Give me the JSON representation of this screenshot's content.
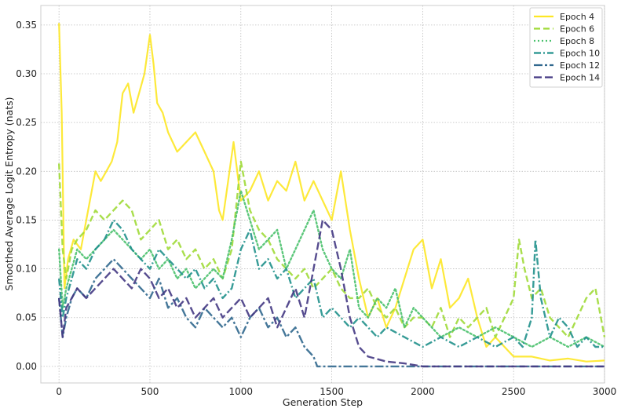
{
  "chart_data": {
    "type": "line",
    "title": "",
    "xlabel": "Generation Step",
    "ylabel": "Smoothed Average Logit Entropy (nats)",
    "xlim": [
      -100,
      3000
    ],
    "ylim": [
      -0.017,
      0.37
    ],
    "x_ticks": [
      0,
      500,
      1000,
      1500,
      2000,
      2500,
      3000
    ],
    "y_ticks": [
      0.0,
      0.05,
      0.1,
      0.15,
      0.2,
      0.25,
      0.3,
      0.35
    ],
    "x_tick_labels": [
      "0",
      "500",
      "1000",
      "1500",
      "2000",
      "2500",
      "3000"
    ],
    "y_tick_labels": [
      "0.00",
      "0.05",
      "0.10",
      "0.15",
      "0.20",
      "0.25",
      "0.30",
      "0.35"
    ],
    "grid": true,
    "legend_position": "top-right",
    "series": [
      {
        "name": "Epoch 4",
        "color": "#fde725",
        "dash": "solid",
        "x": [
          0,
          15,
          30,
          50,
          80,
          120,
          150,
          180,
          200,
          230,
          260,
          290,
          320,
          350,
          380,
          410,
          440,
          470,
          500,
          520,
          540,
          570,
          600,
          650,
          700,
          750,
          800,
          850,
          880,
          900,
          930,
          960,
          1000,
          1050,
          1100,
          1150,
          1200,
          1250,
          1300,
          1350,
          1400,
          1450,
          1500,
          1550,
          1600,
          1650,
          1700,
          1750,
          1800,
          1850,
          1900,
          1950,
          2000,
          2050,
          2100,
          2150,
          2200,
          2250,
          2300,
          2350,
          2400,
          2450,
          2500,
          2600,
          2700,
          2800,
          2900,
          3000
        ],
        "y": [
          0.352,
          0.26,
          0.08,
          0.11,
          0.13,
          0.12,
          0.15,
          0.18,
          0.2,
          0.19,
          0.2,
          0.21,
          0.23,
          0.28,
          0.29,
          0.26,
          0.28,
          0.3,
          0.34,
          0.31,
          0.27,
          0.26,
          0.24,
          0.22,
          0.23,
          0.24,
          0.22,
          0.2,
          0.16,
          0.15,
          0.19,
          0.23,
          0.17,
          0.18,
          0.2,
          0.17,
          0.19,
          0.18,
          0.21,
          0.17,
          0.19,
          0.17,
          0.15,
          0.2,
          0.14,
          0.09,
          0.05,
          0.07,
          0.04,
          0.06,
          0.09,
          0.12,
          0.13,
          0.08,
          0.11,
          0.06,
          0.07,
          0.09,
          0.05,
          0.02,
          0.03,
          0.02,
          0.01,
          0.01,
          0.006,
          0.008,
          0.005,
          0.006
        ]
      },
      {
        "name": "Epoch 6",
        "color": "#a0da39",
        "dash": "long-dash",
        "x": [
          0,
          20,
          40,
          70,
          100,
          150,
          200,
          250,
          300,
          350,
          400,
          450,
          500,
          550,
          600,
          650,
          700,
          750,
          800,
          850,
          900,
          950,
          1000,
          1050,
          1100,
          1150,
          1200,
          1250,
          1300,
          1350,
          1400,
          1450,
          1500,
          1550,
          1600,
          1650,
          1700,
          1750,
          1800,
          1850,
          1900,
          1950,
          2000,
          2050,
          2100,
          2150,
          2200,
          2250,
          2300,
          2350,
          2400,
          2450,
          2500,
          2530,
          2560,
          2600,
          2650,
          2700,
          2750,
          2800,
          2850,
          2900,
          2950,
          3000
        ],
        "y": [
          0.208,
          0.12,
          0.09,
          0.12,
          0.13,
          0.14,
          0.16,
          0.15,
          0.16,
          0.17,
          0.16,
          0.13,
          0.14,
          0.15,
          0.12,
          0.13,
          0.11,
          0.12,
          0.1,
          0.11,
          0.09,
          0.12,
          0.21,
          0.16,
          0.14,
          0.13,
          0.11,
          0.1,
          0.09,
          0.1,
          0.08,
          0.09,
          0.1,
          0.08,
          0.07,
          0.07,
          0.08,
          0.06,
          0.05,
          0.06,
          0.04,
          0.05,
          0.05,
          0.04,
          0.06,
          0.03,
          0.05,
          0.04,
          0.05,
          0.06,
          0.03,
          0.05,
          0.07,
          0.13,
          0.1,
          0.07,
          0.08,
          0.05,
          0.04,
          0.03,
          0.05,
          0.07,
          0.08,
          0.03
        ]
      },
      {
        "name": "Epoch 8",
        "color": "#4ac16d",
        "dash": "dotted",
        "x": [
          0,
          20,
          40,
          70,
          100,
          150,
          200,
          250,
          300,
          350,
          400,
          450,
          500,
          550,
          600,
          650,
          700,
          750,
          800,
          850,
          900,
          950,
          1000,
          1050,
          1100,
          1150,
          1200,
          1250,
          1300,
          1350,
          1400,
          1450,
          1500,
          1550,
          1600,
          1650,
          1700,
          1750,
          1800,
          1850,
          1900,
          1950,
          2000,
          2050,
          2100,
          2200,
          2300,
          2400,
          2500,
          2600,
          2700,
          2800,
          2900,
          3000
        ],
        "y": [
          0.12,
          0.06,
          0.08,
          0.1,
          0.12,
          0.11,
          0.12,
          0.13,
          0.14,
          0.13,
          0.12,
          0.11,
          0.12,
          0.1,
          0.11,
          0.09,
          0.1,
          0.08,
          0.09,
          0.1,
          0.09,
          0.13,
          0.18,
          0.15,
          0.12,
          0.13,
          0.14,
          0.1,
          0.12,
          0.14,
          0.16,
          0.12,
          0.1,
          0.09,
          0.12,
          0.06,
          0.05,
          0.07,
          0.06,
          0.08,
          0.04,
          0.06,
          0.05,
          0.04,
          0.03,
          0.04,
          0.03,
          0.04,
          0.03,
          0.02,
          0.03,
          0.02,
          0.03,
          0.02
        ]
      },
      {
        "name": "Epoch 10",
        "color": "#21918c",
        "dash": "dash-dot",
        "x": [
          0,
          20,
          40,
          70,
          100,
          150,
          200,
          250,
          300,
          350,
          400,
          450,
          500,
          550,
          600,
          650,
          700,
          750,
          800,
          850,
          900,
          950,
          1000,
          1050,
          1100,
          1150,
          1200,
          1250,
          1300,
          1350,
          1400,
          1450,
          1500,
          1550,
          1600,
          1650,
          1700,
          1750,
          1800,
          1900,
          2000,
          2100,
          2200,
          2300,
          2400,
          2500,
          2550,
          2600,
          2620,
          2650,
          2700,
          2750,
          2800,
          2850,
          2900,
          2950,
          3000
        ],
        "y": [
          0.09,
          0.05,
          0.07,
          0.09,
          0.11,
          0.1,
          0.12,
          0.13,
          0.15,
          0.14,
          0.12,
          0.11,
          0.1,
          0.12,
          0.11,
          0.1,
          0.09,
          0.1,
          0.08,
          0.09,
          0.07,
          0.08,
          0.12,
          0.14,
          0.1,
          0.11,
          0.09,
          0.1,
          0.07,
          0.08,
          0.09,
          0.05,
          0.06,
          0.05,
          0.04,
          0.05,
          0.04,
          0.03,
          0.04,
          0.03,
          0.02,
          0.03,
          0.02,
          0.03,
          0.02,
          0.03,
          0.02,
          0.05,
          0.13,
          0.07,
          0.03,
          0.05,
          0.04,
          0.02,
          0.03,
          0.02,
          0.02
        ]
      },
      {
        "name": "Epoch 12",
        "color": "#31688e",
        "dash": "dash-dot-long",
        "x": [
          0,
          20,
          40,
          70,
          100,
          150,
          200,
          250,
          300,
          350,
          400,
          450,
          500,
          550,
          600,
          650,
          700,
          750,
          800,
          850,
          900,
          950,
          1000,
          1050,
          1100,
          1150,
          1200,
          1250,
          1300,
          1350,
          1400,
          1420,
          1500,
          1600,
          1700,
          1800,
          1900,
          2000,
          2100,
          2200,
          2300,
          2400,
          2500,
          2600,
          2700,
          2800,
          2900,
          3000
        ],
        "y": [
          0.07,
          0.03,
          0.05,
          0.07,
          0.08,
          0.07,
          0.09,
          0.1,
          0.11,
          0.1,
          0.09,
          0.08,
          0.07,
          0.09,
          0.06,
          0.07,
          0.05,
          0.04,
          0.06,
          0.05,
          0.04,
          0.05,
          0.03,
          0.05,
          0.06,
          0.04,
          0.05,
          0.03,
          0.04,
          0.02,
          0.01,
          0.0,
          0.0,
          0.0,
          0.0,
          0.0,
          0.0,
          0.0,
          0.0,
          0.0,
          0.0,
          0.0,
          0.0,
          0.0,
          0.0,
          0.0,
          0.0,
          0.0
        ]
      },
      {
        "name": "Epoch 14",
        "color": "#443983",
        "dash": "long-dash-heavy",
        "x": [
          0,
          20,
          40,
          70,
          100,
          150,
          200,
          250,
          300,
          350,
          400,
          450,
          500,
          550,
          600,
          650,
          700,
          750,
          800,
          850,
          900,
          950,
          1000,
          1050,
          1100,
          1150,
          1200,
          1250,
          1300,
          1350,
          1400,
          1450,
          1500,
          1550,
          1600,
          1650,
          1700,
          1800,
          1900,
          2000,
          2100,
          2200,
          2300,
          2400,
          2500,
          2600,
          2700,
          2800,
          2900,
          3000
        ],
        "y": [
          0.07,
          0.03,
          0.06,
          0.07,
          0.08,
          0.07,
          0.08,
          0.09,
          0.1,
          0.09,
          0.08,
          0.1,
          0.09,
          0.07,
          0.08,
          0.06,
          0.07,
          0.05,
          0.06,
          0.07,
          0.05,
          0.06,
          0.07,
          0.05,
          0.06,
          0.07,
          0.04,
          0.06,
          0.08,
          0.05,
          0.1,
          0.15,
          0.14,
          0.1,
          0.05,
          0.02,
          0.01,
          0.005,
          0.003,
          0.0,
          0.0,
          0.0,
          0.0,
          0.0,
          0.0,
          0.0,
          0.0,
          0.0,
          0.0,
          0.0
        ]
      }
    ]
  }
}
